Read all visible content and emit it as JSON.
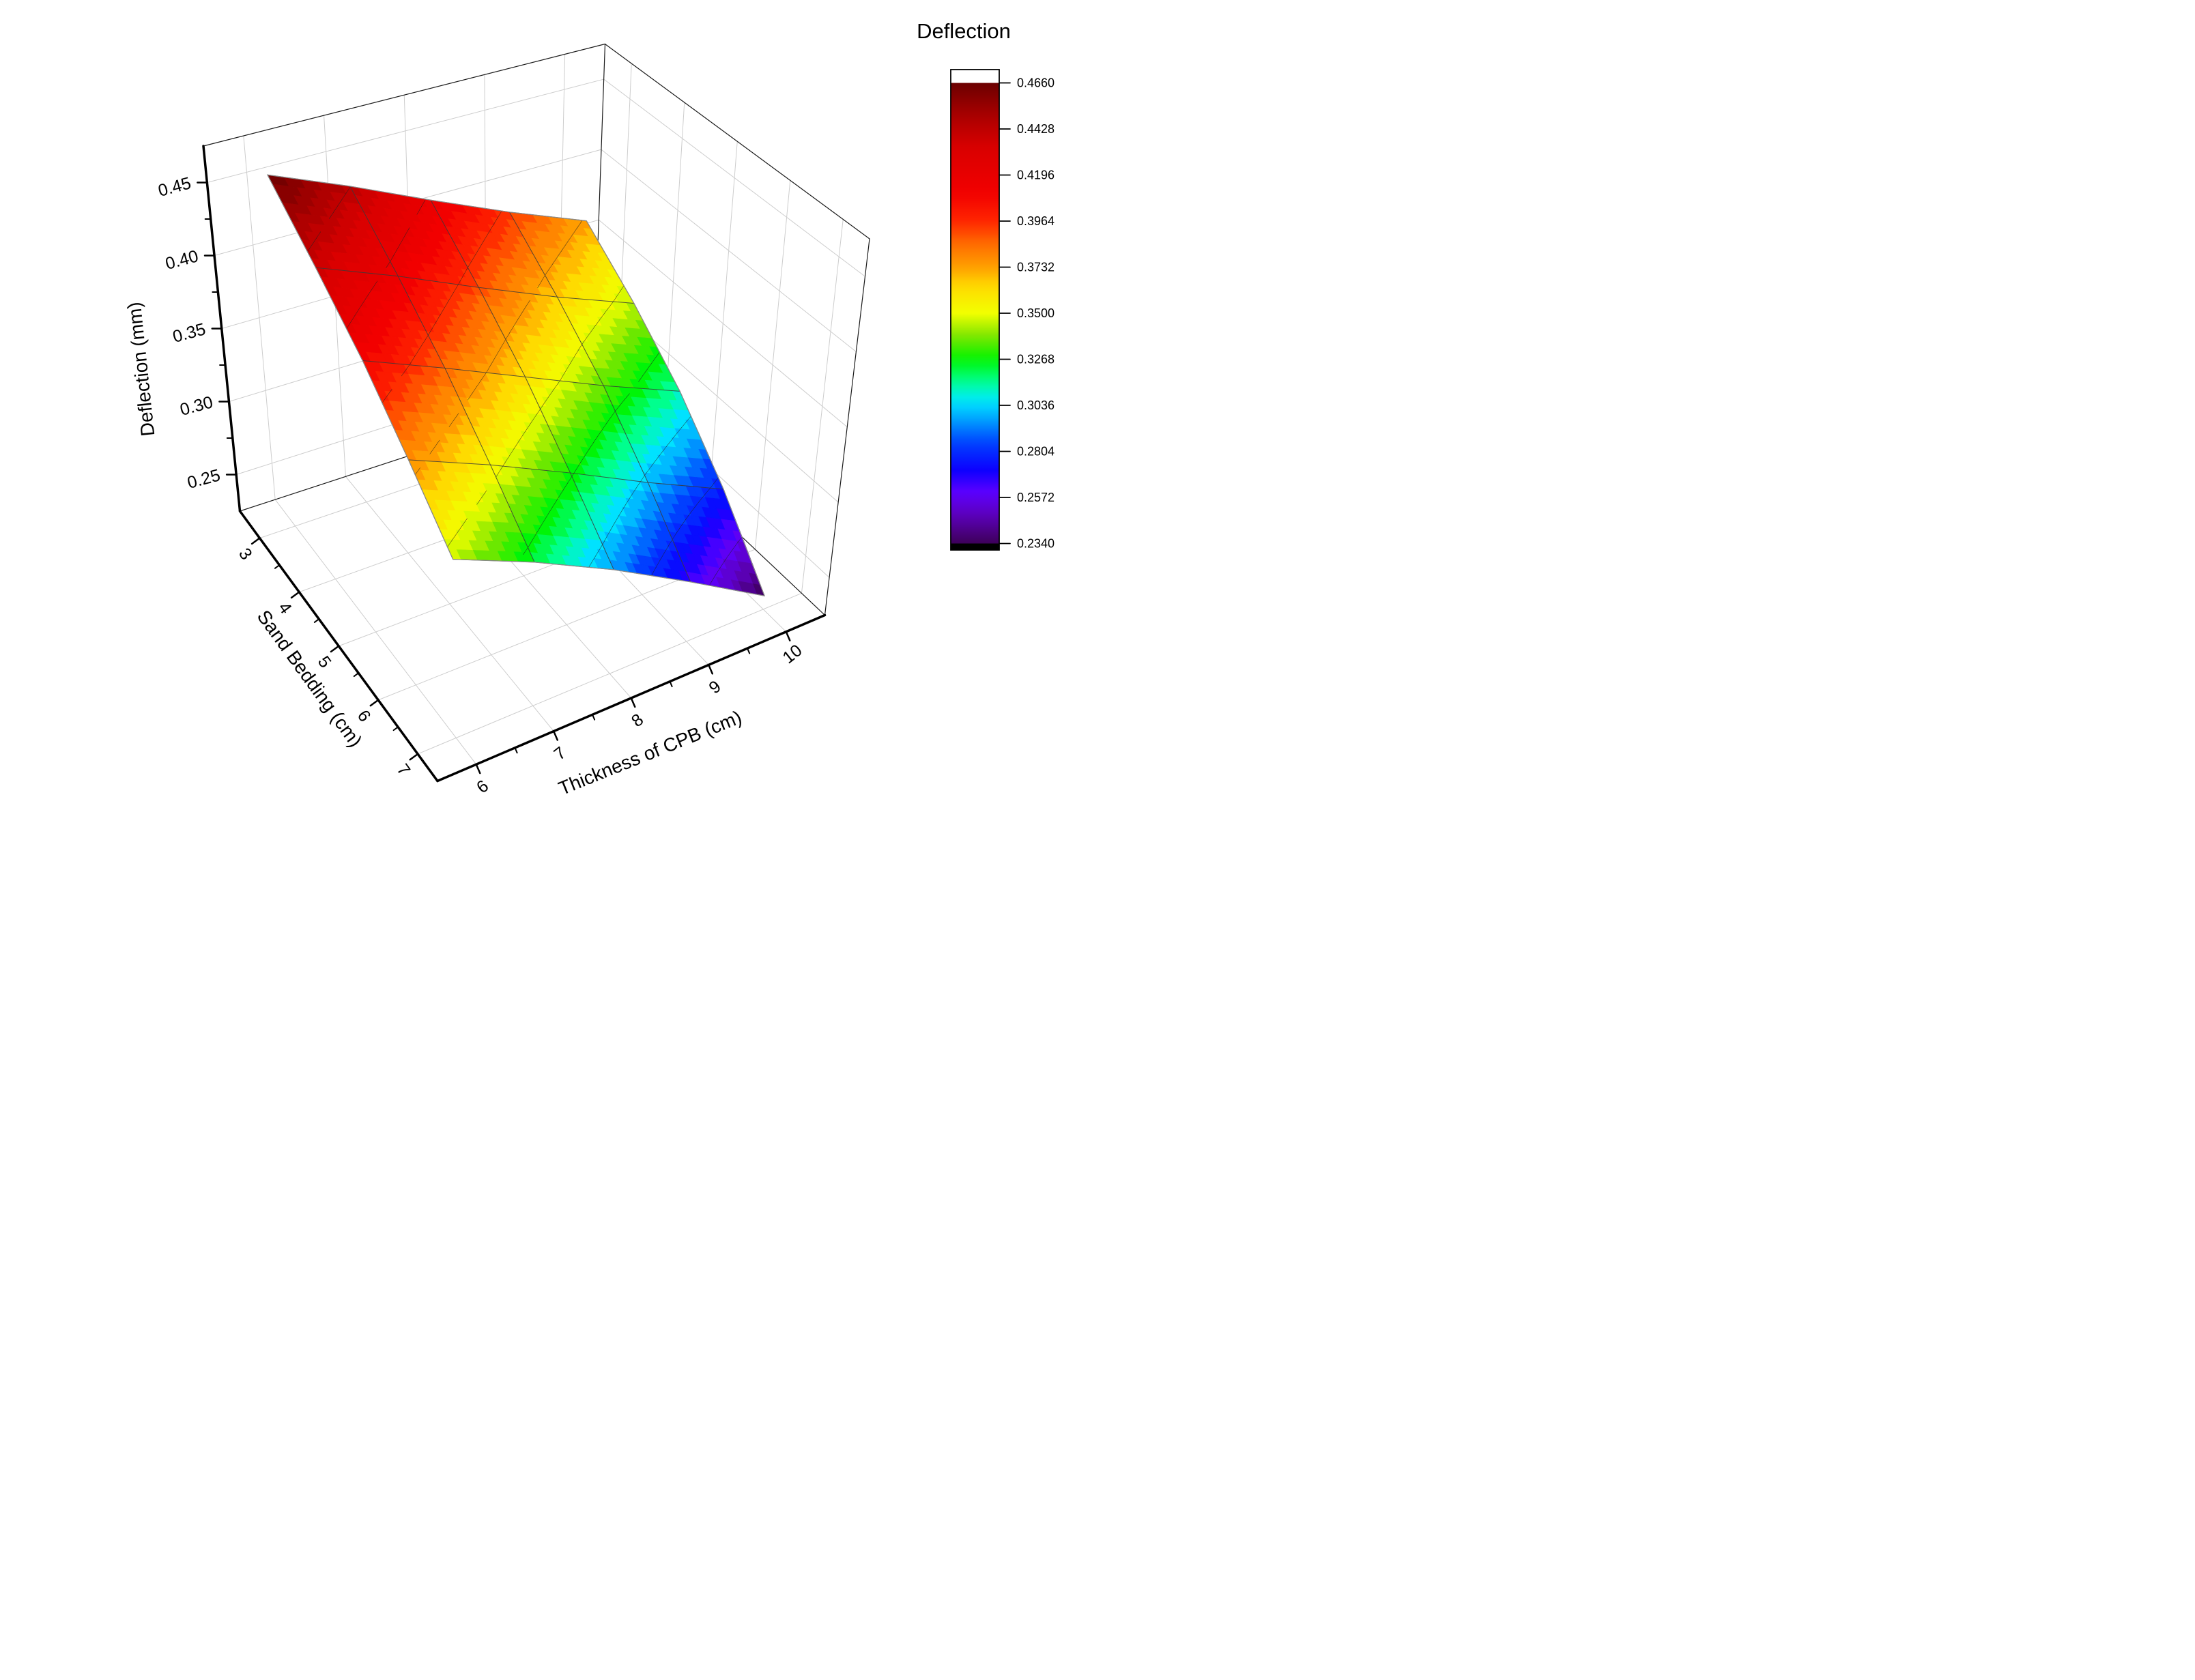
{
  "chart_data": {
    "type": "surface3d",
    "x": {
      "label": "Thickness of CPB (cm)",
      "ticks": [
        "6",
        "7",
        "8",
        "9",
        "10"
      ],
      "values": [
        6,
        7,
        8,
        9,
        10
      ],
      "range": [
        6,
        10
      ]
    },
    "y": {
      "label": "Sand Bedding (cm)",
      "ticks": [
        "3",
        "4",
        "5",
        "6",
        "7"
      ],
      "values": [
        3,
        4,
        5,
        6,
        7
      ],
      "range": [
        3,
        7
      ]
    },
    "z": {
      "label": "Deflection (mm)",
      "ticks": [
        "0.25",
        "0.30",
        "0.35",
        "0.40",
        "0.45"
      ],
      "tick_values": [
        0.25,
        0.3,
        0.35,
        0.4,
        0.45
      ],
      "axis_range": [
        0.225,
        0.475
      ]
    },
    "surface": {
      "comment": "z = deflection (mm); rows correspond to y (sand bedding 3..7), cols to x (thickness 6..10)",
      "z_grid": [
        [
          0.466,
          0.443,
          0.418,
          0.394,
          0.372
        ],
        [
          0.438,
          0.415,
          0.39,
          0.366,
          0.344
        ],
        [
          0.41,
          0.386,
          0.361,
          0.336,
          0.313
        ],
        [
          0.378,
          0.354,
          0.328,
          0.301,
          0.276
        ],
        [
          0.346,
          0.322,
          0.295,
          0.265,
          0.234
        ]
      ],
      "z_min": 0.234,
      "z_max": 0.466
    },
    "colorbar": {
      "title": "Deflection",
      "min": 0.234,
      "max": 0.466,
      "tick_labels": [
        "0.4660",
        "0.4428",
        "0.4196",
        "0.3964",
        "0.3732",
        "0.3500",
        "0.3268",
        "0.3036",
        "0.2804",
        "0.2572",
        "0.2340"
      ],
      "above_max_color": "#ffffff",
      "below_min_color": "#000000"
    },
    "colormap_stops": [
      [
        0.0,
        "#3d0059"
      ],
      [
        0.06,
        "#5c00b8"
      ],
      [
        0.11,
        "#5e00ff"
      ],
      [
        0.16,
        "#0b00ff"
      ],
      [
        0.22,
        "#0044ff"
      ],
      [
        0.27,
        "#00a2ff"
      ],
      [
        0.31,
        "#00e8ff"
      ],
      [
        0.35,
        "#00ff95"
      ],
      [
        0.4,
        "#00f500"
      ],
      [
        0.45,
        "#7ce600"
      ],
      [
        0.5,
        "#f2ff00"
      ],
      [
        0.56,
        "#ffd900"
      ],
      [
        0.6,
        "#ff9e00"
      ],
      [
        0.65,
        "#ff6d00"
      ],
      [
        0.7,
        "#ff2500"
      ],
      [
        0.76,
        "#f20000"
      ],
      [
        0.86,
        "#d90000"
      ],
      [
        0.93,
        "#a80000"
      ],
      [
        1.0,
        "#6b0000"
      ]
    ],
    "contour_levels": [
      0.2572,
      0.2804,
      0.3036,
      0.3268,
      0.35,
      0.3732,
      0.3964,
      0.4196,
      0.4428
    ],
    "grid_color": "#cdcdcd",
    "legend_position": "right",
    "background": "#ffffff"
  }
}
